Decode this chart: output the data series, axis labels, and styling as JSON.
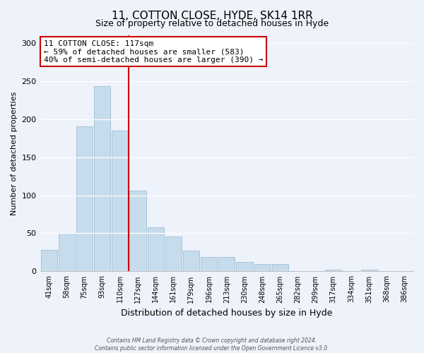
{
  "title": "11, COTTON CLOSE, HYDE, SK14 1RR",
  "subtitle": "Size of property relative to detached houses in Hyde",
  "xlabel": "Distribution of detached houses by size in Hyde",
  "ylabel": "Number of detached properties",
  "categories": [
    "41sqm",
    "58sqm",
    "75sqm",
    "93sqm",
    "110sqm",
    "127sqm",
    "144sqm",
    "161sqm",
    "179sqm",
    "196sqm",
    "213sqm",
    "230sqm",
    "248sqm",
    "265sqm",
    "282sqm",
    "299sqm",
    "317sqm",
    "334sqm",
    "351sqm",
    "368sqm",
    "386sqm"
  ],
  "values": [
    28,
    50,
    190,
    243,
    185,
    106,
    58,
    46,
    27,
    19,
    19,
    12,
    10,
    10,
    0,
    0,
    2,
    0,
    2,
    0,
    0
  ],
  "bar_color": "#c6dcec",
  "bar_edge_color": "#a0bfd4",
  "vline_index": 4,
  "vline_color": "#cc0000",
  "ylim": [
    0,
    310
  ],
  "yticks": [
    0,
    50,
    100,
    150,
    200,
    250,
    300
  ],
  "annotation_line1": "11 COTTON CLOSE: 117sqm",
  "annotation_line2": "← 59% of detached houses are smaller (583)",
  "annotation_line3": "40% of semi-detached houses are larger (390) →",
  "annotation_box_color": "#ffffff",
  "annotation_box_edge": "#cc0000",
  "footer_text": "Contains HM Land Registry data © Crown copyright and database right 2024.\nContains public sector information licensed under the Open Government Licence v3.0.",
  "background_color": "#eef2fa",
  "plot_bg_color": "#eef2fa",
  "title_fontsize": 11,
  "subtitle_fontsize": 9,
  "ylabel_fontsize": 8,
  "xlabel_fontsize": 9,
  "tick_fontsize": 7,
  "ytick_fontsize": 8
}
